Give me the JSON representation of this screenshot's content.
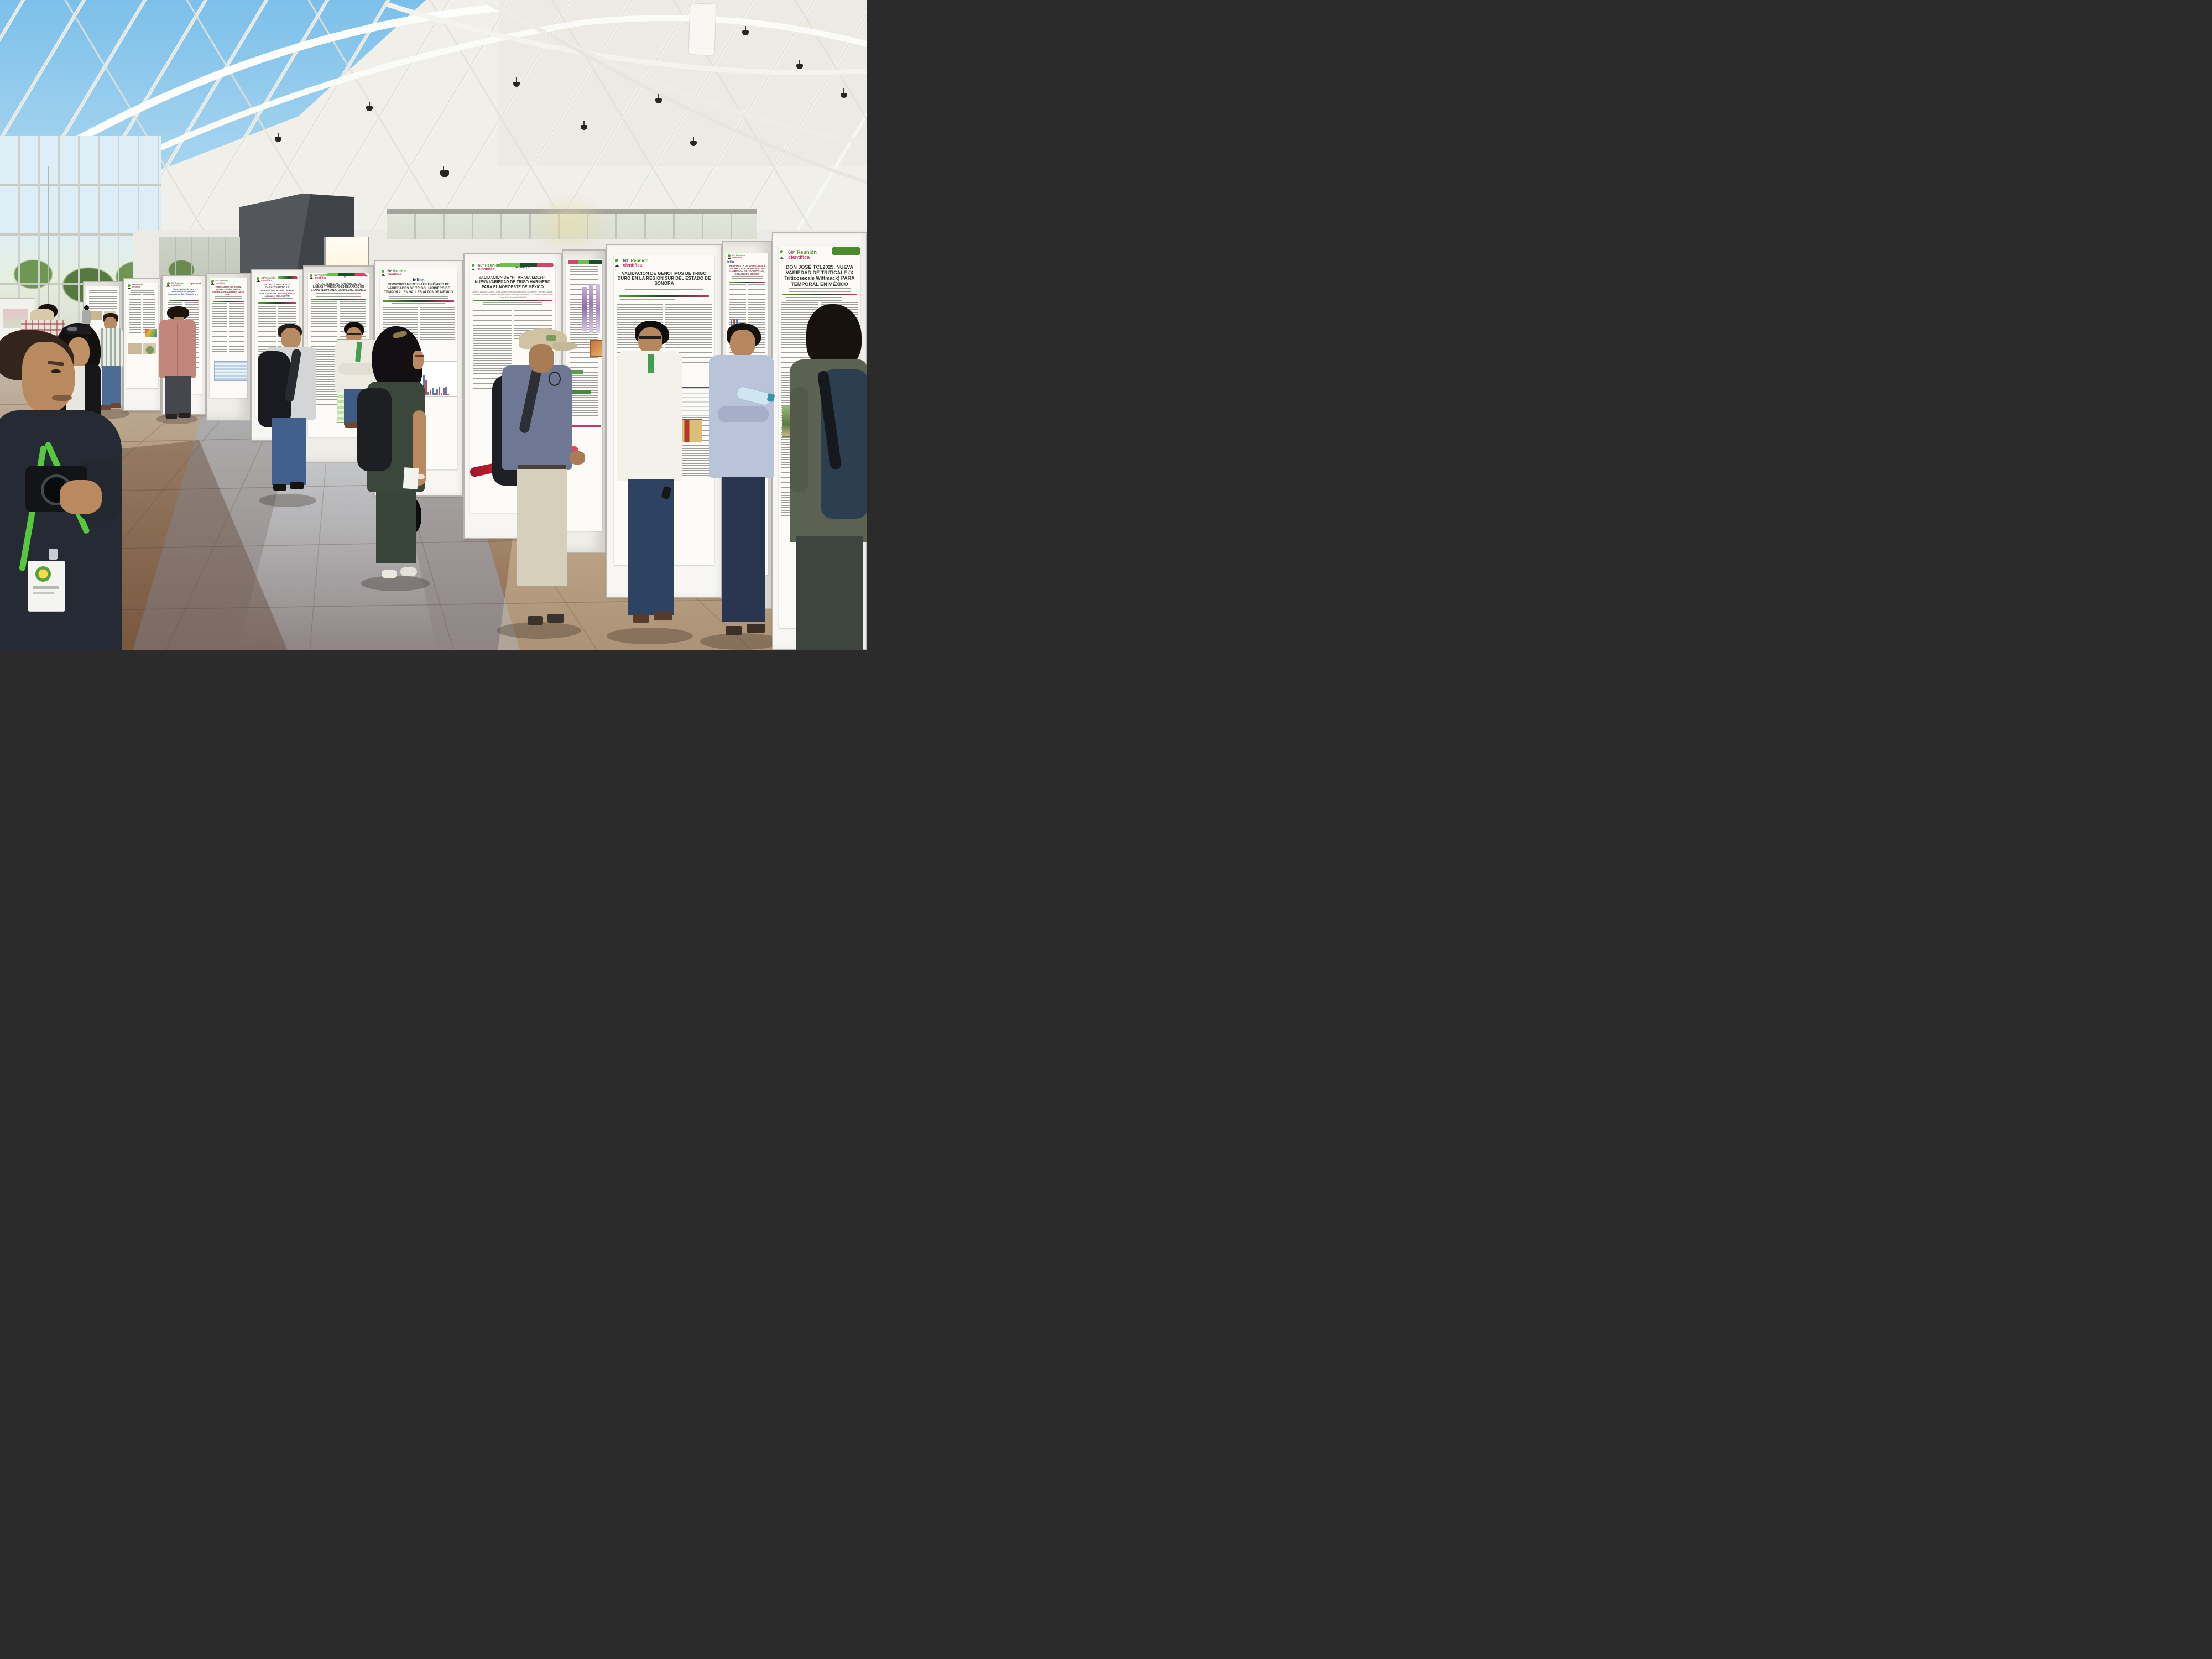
{
  "event": {
    "name_edition": "60ª",
    "name_line1": "Reunión",
    "name_line2": "científica",
    "description": "Sesión de carteles científicos en un vestíbulo con estructura de acero"
  },
  "brand": {
    "edition": "60ª",
    "reunion": "Reunión",
    "cientifica": "científica",
    "color_green": "#5a9e2f",
    "color_dark_green": "#1e4d2b",
    "color_pink": "#c9356e"
  },
  "partners": {
    "inifap": "inifap",
    "agricultura_caps": "AGRICULTURA",
    "agricultura_word": "Agricultura",
    "lanaret": "LANARET"
  },
  "posters": [
    {
      "id": "cartel-plantas",
      "title": "",
      "authors": "",
      "figures": [
        "fotografías de plantas",
        "mapa de colores"
      ]
    },
    {
      "id": "cartel-ajonjoli",
      "title": "Descripción de tres variedades de ajonjolí: Iguanateca, San Joaquín y …",
      "authors": "",
      "figures": [
        "mapa"
      ]
    },
    {
      "id": "cartel-avena-ambientes",
      "title": "VARIEDADES DE AVENA (Avena sativa L.) ANTE CONDICIONES AMBIENTALES CON…",
      "authors": "",
      "figures": [
        "tabla azul"
      ]
    },
    {
      "id": "cartel-selecciones-avena",
      "title": "SELECCIONES Y SUS CARACTERÍSTICAS AGRONÓMICAS EN LA RED NACIONAL DE AVENA (Avena sativa L.) DEL INIFAP",
      "authors": "",
      "figures": [
        "gráfica de líneas"
      ]
    },
    {
      "id": "cartel-arroz-campeche",
      "title": "CARACTERES AGRONÓMICOS DE LÍNEAS Y VARIEDADES DE ARROZ EN ETAPA TEMPRANA, CAMPECHE, MÉXICO",
      "authors": "",
      "figures": [
        "tabla verde"
      ]
    },
    {
      "id": "cartel-trigo-valles-altos",
      "title": "COMPORTAMIENTO AGRONÓMICO DE VARIEDADES DE TRIGO HARINERO DE TEMPORAL EN VALLES ALTOS DE MÉXICO",
      "authors": "",
      "figures": [
        "gráfica de barras azul y naranja"
      ]
    },
    {
      "id": "cartel-pitahaya-m2024",
      "title": "VALIDACIÓN DE “PITAHAYA M2024”, NUEVA VARIEDAD DE TRIGO HARINERO PARA EL NOROESTE DE MÉXICO",
      "authors": "Alberto Borbón-Gracia, José Ángel Marroquín-Morales, Guillermo Fuentes-Dávila, Gabriela Chávez-Villalba, Huízar Leonardo Díaz-Ceniceros, Elizabeth García-León, Jorge Iván Alvarado-Padilla",
      "figures": [
        "fotografía sepia de campo",
        "tabla"
      ]
    },
    {
      "id": "cartel-electroforesis",
      "title": "",
      "authors": "",
      "figures": [
        "carriles de electroforesis",
        "bloques verdes"
      ]
    },
    {
      "id": "cartel-trigo-duro-sonora",
      "title": "VALIDACION DE GENOTIPOS DE TRIGO DURO EN LA REGION SUR DEL ESTADO DE SONORA",
      "authors": "",
      "figures": [
        "tabla",
        "fotografía de espigas"
      ]
    },
    {
      "id": "cartel-trigo-jocotitlan",
      "title": "RESPUESTA DE VARIEDADES DE TRIGO DE TEMPORAL EN LA REGIÓN DE JOCOTITLÁN, ESTADO DE MÉXICO",
      "authors": "",
      "figures": []
    },
    {
      "id": "cartel-don-jose-tcl2025",
      "title": "DON JOSÉ TCL2025, NUEVA VARIEDAD DE TRITICALE (X Triticosecale Wittmack) PARA TEMPORAL EN MÉXICO",
      "authors": "",
      "figures": [
        "tabla magenta",
        "fotografía de campo"
      ]
    }
  ],
  "people": [
    {
      "label": "hombre en primer plano con chamarra oscura, cordón verde y gafete"
    },
    {
      "label": "mujer de cabello negro con lentes de sol y bolsa negra"
    },
    {
      "label": "persona con camisa de cuadros al fondo"
    },
    {
      "label": "hombre de camisa gris caminando al fondo"
    },
    {
      "label": "hombre de camisa a rayas y jeans viendo un cartel"
    },
    {
      "label": "hombre de camisa rosa viendo el cartel de ajonjolí"
    },
    {
      "label": "hombre de playera gris con mochila negra"
    },
    {
      "label": "hombre de camisa blanca con cordón verde, de perfil"
    },
    {
      "label": "mujer de atuendo verde olivo con mochila y bolsa negra"
    },
    {
      "label": "hombre con gorra beige, mochila y tubo rojo de carteles"
    },
    {
      "label": "hombre de camisa blanca y jeans frente al cartel de Sonora"
    },
    {
      "label": "hombre de camisa azul claro con botella de agua"
    },
    {
      "label": "persona con mochila azul en el borde derecho"
    }
  ],
  "decor": {
    "valles_bars": [
      62,
      44,
      10,
      16,
      22,
      6,
      20,
      26,
      8,
      22,
      24,
      5
    ]
  }
}
